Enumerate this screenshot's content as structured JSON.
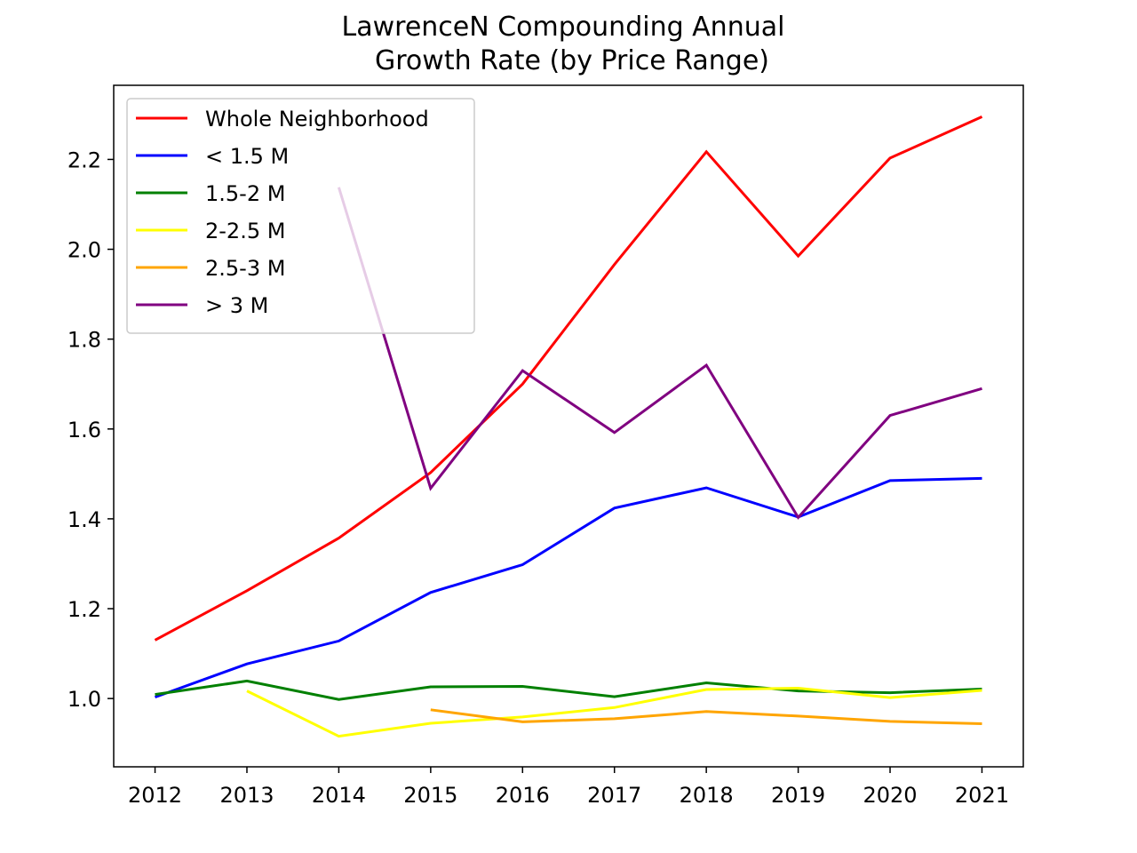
{
  "chart_data": {
    "type": "line",
    "title_lines": [
      "LawrenceN Compounding Annual",
      "Growth Rate (by Price Range)"
    ],
    "xlabel": "",
    "ylabel": "",
    "x": [
      "2012",
      "2013",
      "2014",
      "2015",
      "2016",
      "2017",
      "2018",
      "2019",
      "2020",
      "2021"
    ],
    "xlim": [
      2011.55,
      2021.45
    ],
    "ylim": [
      0.848,
      2.365
    ],
    "yticks": [
      1.0,
      1.2,
      1.4,
      1.6,
      1.8,
      2.0,
      2.2
    ],
    "ytick_labels": [
      "1.0",
      "1.2",
      "1.4",
      "1.6",
      "1.8",
      "2.0",
      "2.2"
    ],
    "grid": false,
    "legend_position": "upper-left",
    "series": [
      {
        "name": "Whole Neighborhood",
        "color": "#ff0000",
        "values": [
          1.13,
          1.24,
          1.357,
          1.503,
          1.7,
          1.966,
          2.217,
          1.985,
          2.203,
          2.295
        ]
      },
      {
        "name": "< 1.5 M",
        "color": "#0000ff",
        "values": [
          1.003,
          1.077,
          1.128,
          1.236,
          1.298,
          1.424,
          1.469,
          1.404,
          1.485,
          1.49
        ]
      },
      {
        "name": "1.5-2 M",
        "color": "#008000",
        "values": [
          1.009,
          1.039,
          0.998,
          1.026,
          1.027,
          1.004,
          1.035,
          1.017,
          1.013,
          1.021
        ]
      },
      {
        "name": "2-2.5 M",
        "color": "#ffff00",
        "values": [
          null,
          1.017,
          0.916,
          0.945,
          0.959,
          0.98,
          1.02,
          1.023,
          1.002,
          1.018
        ]
      },
      {
        "name": "2.5-3 M",
        "color": "#ffa500",
        "values": [
          null,
          null,
          null,
          0.975,
          0.948,
          0.955,
          0.971,
          0.961,
          0.949,
          0.944
        ]
      },
      {
        "name": "> 3 M",
        "color": "#800080",
        "values": [
          null,
          null,
          2.138,
          1.468,
          1.73,
          1.592,
          1.742,
          1.403,
          1.63,
          1.69
        ]
      }
    ]
  }
}
